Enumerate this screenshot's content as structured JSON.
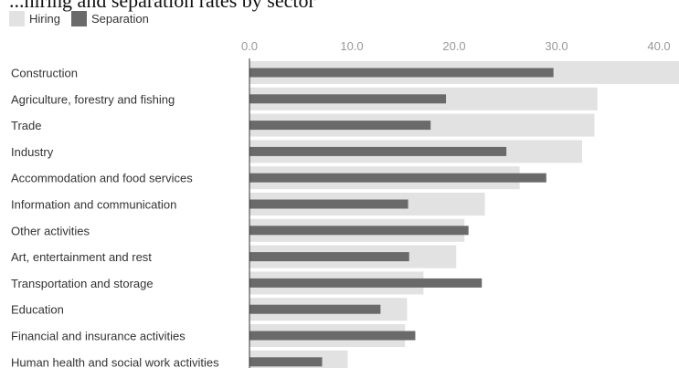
{
  "title_fragment": "...hiring and separation rates by sector",
  "legend": [
    {
      "label": "Hiring",
      "color": "#e2e2e2"
    },
    {
      "label": "Separation",
      "color": "#6a6a6a"
    }
  ],
  "chart_data": {
    "type": "bar",
    "orientation": "horizontal",
    "categories": [
      "Construction",
      "Agriculture, forestry and fishing",
      "Trade",
      "Industry",
      "Accommodation and food services",
      "Information and communication",
      "Other activities",
      "Art, entertainment and rest",
      "Transportation and storage",
      "Education",
      "Financial and insurance activities",
      "Human health and social work activities"
    ],
    "series": [
      {
        "name": "Hiring",
        "color": "#e2e2e2",
        "values": [
          42.0,
          34.0,
          33.7,
          32.5,
          26.4,
          23.0,
          21.0,
          20.2,
          17.0,
          15.4,
          15.2,
          9.6
        ]
      },
      {
        "name": "Separation",
        "color": "#6a6a6a",
        "values": [
          29.7,
          19.2,
          17.7,
          25.1,
          29.0,
          15.5,
          21.4,
          15.6,
          22.7,
          12.8,
          16.2,
          7.1
        ]
      }
    ],
    "x_ticks": [
      "0.0",
      "10.0",
      "20.0",
      "30.0",
      "40.0"
    ],
    "xlim": [
      0,
      42
    ],
    "legend_position": "top-left",
    "grid": false
  }
}
